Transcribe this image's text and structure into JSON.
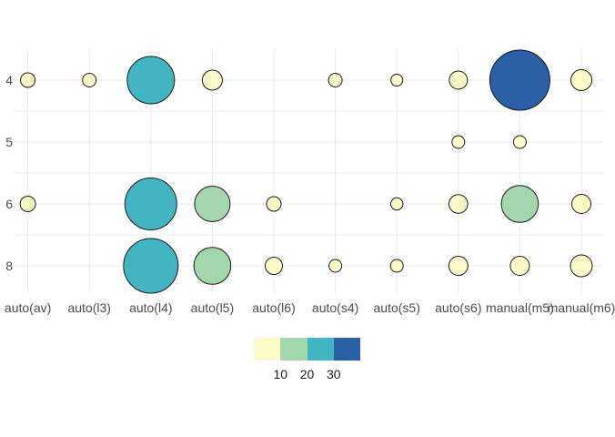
{
  "chart_data": {
    "type": "bubble",
    "title": "",
    "xlabel": "",
    "ylabel": "",
    "x_categories": [
      "auto(av)",
      "auto(l3)",
      "auto(l4)",
      "auto(l5)",
      "auto(l6)",
      "auto(s4)",
      "auto(s5)",
      "auto(s6)",
      "manual(m5)",
      "manual(m6)"
    ],
    "y_categories": [
      "4",
      "5",
      "6",
      "8"
    ],
    "points": [
      {
        "x": "auto(av)",
        "y": "4",
        "n": 2,
        "r": 8
      },
      {
        "x": "auto(l3)",
        "y": "4",
        "n": 2,
        "r": 7.5
      },
      {
        "x": "auto(l4)",
        "y": "4",
        "n": 22,
        "r": 26
      },
      {
        "x": "auto(l5)",
        "y": "4",
        "n": 4,
        "r": 11
      },
      {
        "x": "auto(s4)",
        "y": "4",
        "n": 2,
        "r": 7.5
      },
      {
        "x": "auto(s5)",
        "y": "4",
        "n": 1,
        "r": 6.5
      },
      {
        "x": "auto(s6)",
        "y": "4",
        "n": 3,
        "r": 10
      },
      {
        "x": "manual(m5)",
        "y": "4",
        "n": 35,
        "r": 33
      },
      {
        "x": "manual(m6)",
        "y": "4",
        "n": 4,
        "r": 11.5
      },
      {
        "x": "auto(s6)",
        "y": "5",
        "n": 2,
        "r": 7
      },
      {
        "x": "manual(m5)",
        "y": "5",
        "n": 2,
        "r": 7
      },
      {
        "x": "auto(av)",
        "y": "6",
        "n": 2,
        "r": 8.5
      },
      {
        "x": "auto(l4)",
        "y": "6",
        "n": 26,
        "r": 28.5
      },
      {
        "x": "auto(l5)",
        "y": "6",
        "n": 13,
        "r": 19.5
      },
      {
        "x": "auto(l6)",
        "y": "6",
        "n": 2,
        "r": 8
      },
      {
        "x": "auto(s5)",
        "y": "6",
        "n": 1,
        "r": 6.7
      },
      {
        "x": "auto(s6)",
        "y": "6",
        "n": 3,
        "r": 10.3
      },
      {
        "x": "manual(m5)",
        "y": "6",
        "n": 14,
        "r": 20.3
      },
      {
        "x": "manual(m6)",
        "y": "6",
        "n": 3,
        "r": 10.5
      },
      {
        "x": "auto(l4)",
        "y": "8",
        "n": 29,
        "r": 30
      },
      {
        "x": "auto(l5)",
        "y": "8",
        "n": 14,
        "r": 20.3
      },
      {
        "x": "auto(l6)",
        "y": "8",
        "n": 3,
        "r": 9.5
      },
      {
        "x": "auto(s4)",
        "y": "8",
        "n": 2,
        "r": 7
      },
      {
        "x": "auto(s5)",
        "y": "8",
        "n": 2,
        "r": 7
      },
      {
        "x": "auto(s6)",
        "y": "8",
        "n": 3,
        "r": 10.5
      },
      {
        "x": "manual(m5)",
        "y": "8",
        "n": 3,
        "r": 10.5
      },
      {
        "x": "manual(m6)",
        "y": "8",
        "n": 4,
        "r": 12
      }
    ],
    "legend": {
      "position": "bottom-center",
      "tick_labels": [
        "10",
        "20",
        "30"
      ],
      "bin_thresholds": [
        10,
        20,
        30
      ],
      "bin_colors": [
        "#FBFBC9",
        "#A4D6AE",
        "#42B5C2",
        "#2B60A7"
      ]
    },
    "grid": {
      "show_major": true,
      "show_minor_between_rows": true,
      "major_color": "#E8E8E8",
      "minor_color": "#ECECEC"
    },
    "style": {
      "axis_text_color": "#4D4D4D",
      "legend_text_color": "#1A1A1A",
      "bubble_stroke_color": "#1A1A1A",
      "background_color": "#FFFFFF"
    }
  }
}
